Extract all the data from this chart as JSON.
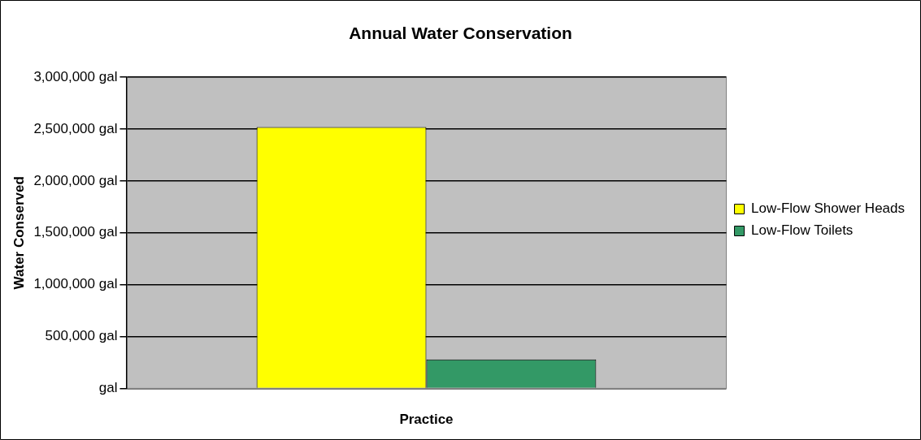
{
  "chart_data": {
    "type": "bar",
    "title": "Annual Water Conservation",
    "xlabel": "Practice",
    "ylabel": "Water Conserved",
    "categories": [
      null
    ],
    "series": [
      {
        "name": "Low-Flow Shower Heads",
        "color": "#ffff00",
        "values": [
          2520000
        ]
      },
      {
        "name": "Low-Flow Toilets",
        "color": "#339966",
        "values": [
          280000
        ]
      }
    ],
    "ylim": [
      0,
      3000000
    ],
    "yticks": [
      {
        "value": 0,
        "label": "gal"
      },
      {
        "value": 500000,
        "label": "500,000 gal"
      },
      {
        "value": 1000000,
        "label": "1,000,000 gal"
      },
      {
        "value": 1500000,
        "label": "1,500,000 gal"
      },
      {
        "value": 2000000,
        "label": "2,000,000 gal"
      },
      {
        "value": 2500000,
        "label": "2,500,000 gal"
      },
      {
        "value": 3000000,
        "label": "3,000,000 gal"
      }
    ],
    "grid": "y",
    "legend": "right"
  }
}
